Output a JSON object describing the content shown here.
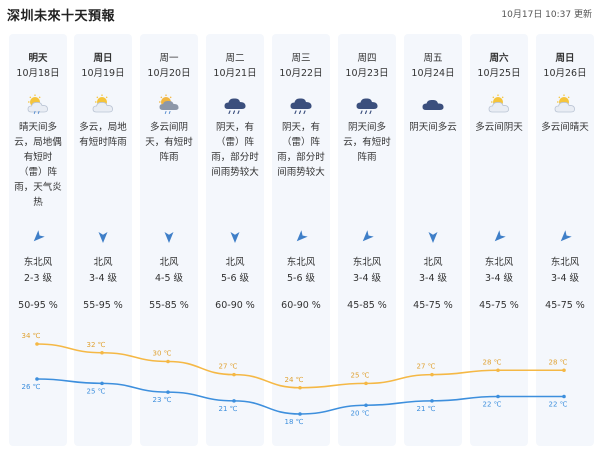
{
  "header": {
    "title": "深圳未來十天預報",
    "updated": "10月17日 10:37 更新"
  },
  "colors": {
    "high": "#f5b845",
    "low": "#3d8fdd",
    "column_bg": "#f4f7fc",
    "arrow": "#3f7fc8"
  },
  "days": [
    {
      "name": "明天",
      "bold": true,
      "date": "10月18日",
      "icon": "partly-sunny-rain-icon",
      "desc": "晴天间多云，局地偶有短时（雷）阵雨，天气炎热",
      "wind_dir": "东北风",
      "wind_level": "2-3 级",
      "humidity": "50-95 %",
      "arrow_deg": 225
    },
    {
      "name": "周日",
      "bold": true,
      "date": "10月19日",
      "icon": "partly-cloudy-icon",
      "desc": "多云，局地有短时阵雨",
      "wind_dir": "北风",
      "wind_level": "3-4 级",
      "humidity": "55-95 %",
      "arrow_deg": 180
    },
    {
      "name": "周一",
      "bold": false,
      "date": "10月20日",
      "icon": "partly-cloudy-rain-icon",
      "desc": "多云间阴天，有短时阵雨",
      "wind_dir": "北风",
      "wind_level": "4-5 级",
      "humidity": "55-85 %",
      "arrow_deg": 180
    },
    {
      "name": "周二",
      "bold": false,
      "date": "10月21日",
      "icon": "rain-cloud-icon",
      "desc": "阴天，有（雷）阵雨，部分时间雨势较大",
      "wind_dir": "北风",
      "wind_level": "5-6 级",
      "humidity": "60-90 %",
      "arrow_deg": 180
    },
    {
      "name": "周三",
      "bold": false,
      "date": "10月22日",
      "icon": "rain-cloud-icon",
      "desc": "阴天，有（雷）阵雨，部分时间雨势较大",
      "wind_dir": "东北风",
      "wind_level": "5-6 级",
      "humidity": "60-90 %",
      "arrow_deg": 225
    },
    {
      "name": "周四",
      "bold": false,
      "date": "10月23日",
      "icon": "rain-cloud-icon",
      "desc": "阴天间多云，有短时阵雨",
      "wind_dir": "东北风",
      "wind_level": "3-4 级",
      "humidity": "45-85 %",
      "arrow_deg": 225
    },
    {
      "name": "周五",
      "bold": false,
      "date": "10月24日",
      "icon": "overcast-icon",
      "desc": "阴天间多云",
      "wind_dir": "北风",
      "wind_level": "3-4 级",
      "humidity": "45-75 %",
      "arrow_deg": 180
    },
    {
      "name": "周六",
      "bold": true,
      "date": "10月25日",
      "icon": "partly-sunny-icon",
      "desc": "多云间阴天",
      "wind_dir": "东北风",
      "wind_level": "3-4 级",
      "humidity": "45-75 %",
      "arrow_deg": 225
    },
    {
      "name": "周日",
      "bold": true,
      "date": "10月26日",
      "icon": "partly-sunny-icon",
      "desc": "多云间晴天",
      "wind_dir": "东北风",
      "wind_level": "3-4 级",
      "humidity": "45-75 %",
      "arrow_deg": 225
    }
  ],
  "chart_data": {
    "type": "line",
    "categories": [
      "10月18日",
      "10月19日",
      "10月20日",
      "10月21日",
      "10月22日",
      "10月23日",
      "10月24日",
      "10月25日",
      "10月26日"
    ],
    "series": [
      {
        "values": [
          34,
          32,
          30,
          27,
          24,
          25,
          27,
          28,
          28
        ],
        "labels": [
          "34 ℃",
          "32 ℃",
          "30 ℃",
          "27 ℃",
          "24 ℃",
          "25 ℃",
          "27 ℃",
          "28 ℃",
          "28 ℃"
        ]
      },
      {
        "values": [
          26,
          25,
          23,
          21,
          18,
          20,
          21,
          22,
          22
        ],
        "labels": [
          "26 ℃",
          "25 ℃",
          "23 ℃",
          "21 ℃",
          "18 ℃",
          "20 ℃",
          "21 ℃",
          "22 ℃",
          "22 ℃"
        ]
      }
    ],
    "ylim": [
      16,
      36
    ]
  }
}
